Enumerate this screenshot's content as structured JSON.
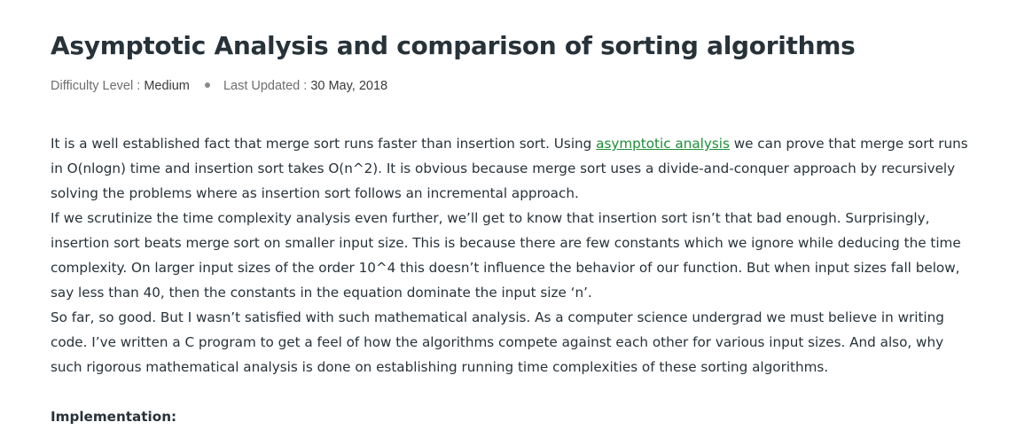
{
  "article": {
    "title": "Asymptotic Analysis and comparison of sorting algorithms",
    "meta": {
      "difficulty_label": "Difficulty Level :",
      "difficulty_value": "Medium",
      "updated_label": "Last Updated :",
      "updated_value": "30 May, 2018"
    },
    "paragraphs": {
      "p1": {
        "before_link": "It is a well established fact that merge sort runs faster than insertion sort. Using ",
        "link_text": "asymptotic analysis",
        "after_link": " we can prove that merge sort runs in O(nlogn) time and insertion sort takes O(n^2). It is obvious because merge sort uses a divide-and-conquer approach by recursively solving the problems where as insertion sort follows an incremental approach."
      },
      "p2": "If we scrutinize the time complexity analysis even further, we’ll get to know that insertion sort isn’t that bad enough. Surprisingly, insertion sort beats merge sort on smaller input size. This is because there are few constants which we ignore while deducing the time complexity. On larger input sizes of the order 10^4 this doesn’t influence the behavior of our function. But when input sizes fall below, say less than 40, then the constants in the equation dominate the input size ‘n’.",
      "p3": "So far, so good. But I wasn’t satisfied with such mathematical analysis. As a computer science undergrad we must believe in writing code. I’ve written a C program to get a feel of how the algorithms compete against each other for various input sizes. And also, why such rigorous mathematical analysis is done on establishing running time complexities of these sorting algorithms."
    },
    "implementation_heading": "Implementation:"
  },
  "colors": {
    "text": "#273239",
    "link": "#1e8d38",
    "meta": "#6e6e6e"
  }
}
